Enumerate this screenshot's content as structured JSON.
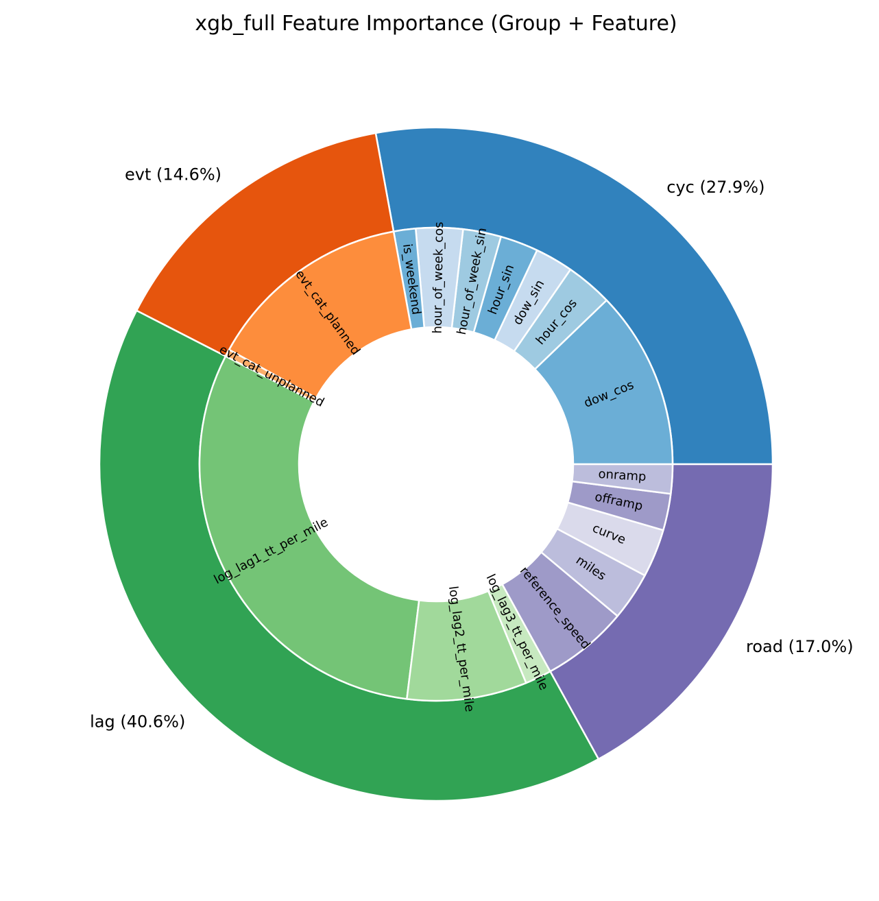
{
  "chart_data": {
    "type": "pie",
    "subtype": "nested-donut",
    "title": "xgb_full Feature Importance (Group + Feature)",
    "groups": [
      {
        "name": "cyc",
        "label": "cyc (27.9%)",
        "value": 27.9,
        "color": "#3182bd",
        "features": [
          {
            "name": "dow_cos",
            "value": 12.2,
            "color": "#6baed6"
          },
          {
            "name": "hour_cos",
            "value": 3.2,
            "color": "#9ecae1"
          },
          {
            "name": "dow_sin",
            "value": 2.6,
            "color": "#c6dbef"
          },
          {
            "name": "hour_sin",
            "value": 2.6,
            "color": "#6baed6"
          },
          {
            "name": "hour_of_week_sin",
            "value": 2.6,
            "color": "#9ecae1"
          },
          {
            "name": "hour_of_week_cos",
            "value": 3.2,
            "color": "#c6dbef"
          },
          {
            "name": "is_weekend",
            "value": 1.5,
            "color": "#6baed6"
          }
        ]
      },
      {
        "name": "evt",
        "label": "evt (14.6%)",
        "value": 14.6,
        "color": "#e6550d",
        "features": [
          {
            "name": "evt_cat_planned",
            "value": 14.1,
            "color": "#fd8d3c"
          },
          {
            "name": "evt_cat_unplanned",
            "value": 0.5,
            "color": "#fdae6b"
          }
        ]
      },
      {
        "name": "lag",
        "label": "lag (40.6%)",
        "value": 40.6,
        "color": "#31a354",
        "features": [
          {
            "name": "log_lag1_tt_per_mile",
            "value": 30.6,
            "color": "#74c476"
          },
          {
            "name": "log_lag2_tt_per_mile",
            "value": 8.2,
            "color": "#a1d99b"
          },
          {
            "name": "log_lag3_tt_per_mile",
            "value": 1.8,
            "color": "#c7e9c0"
          }
        ]
      },
      {
        "name": "road",
        "label": "road (17.0%)",
        "value": 17.0,
        "color": "#756bb1",
        "features": [
          {
            "name": "reference_speed",
            "value": 5.9,
            "color": "#9e9ac8"
          },
          {
            "name": "miles",
            "value": 3.3,
            "color": "#bcbddc"
          },
          {
            "name": "curve",
            "value": 3.3,
            "color": "#dadaeb"
          },
          {
            "name": "offramp",
            "value": 2.5,
            "color": "#9e9ac8"
          },
          {
            "name": "onramp",
            "value": 2.0,
            "color": "#bcbddc"
          }
        ]
      }
    ],
    "start_angle_deg": 0,
    "direction": "counterclockwise",
    "legend": "none"
  }
}
